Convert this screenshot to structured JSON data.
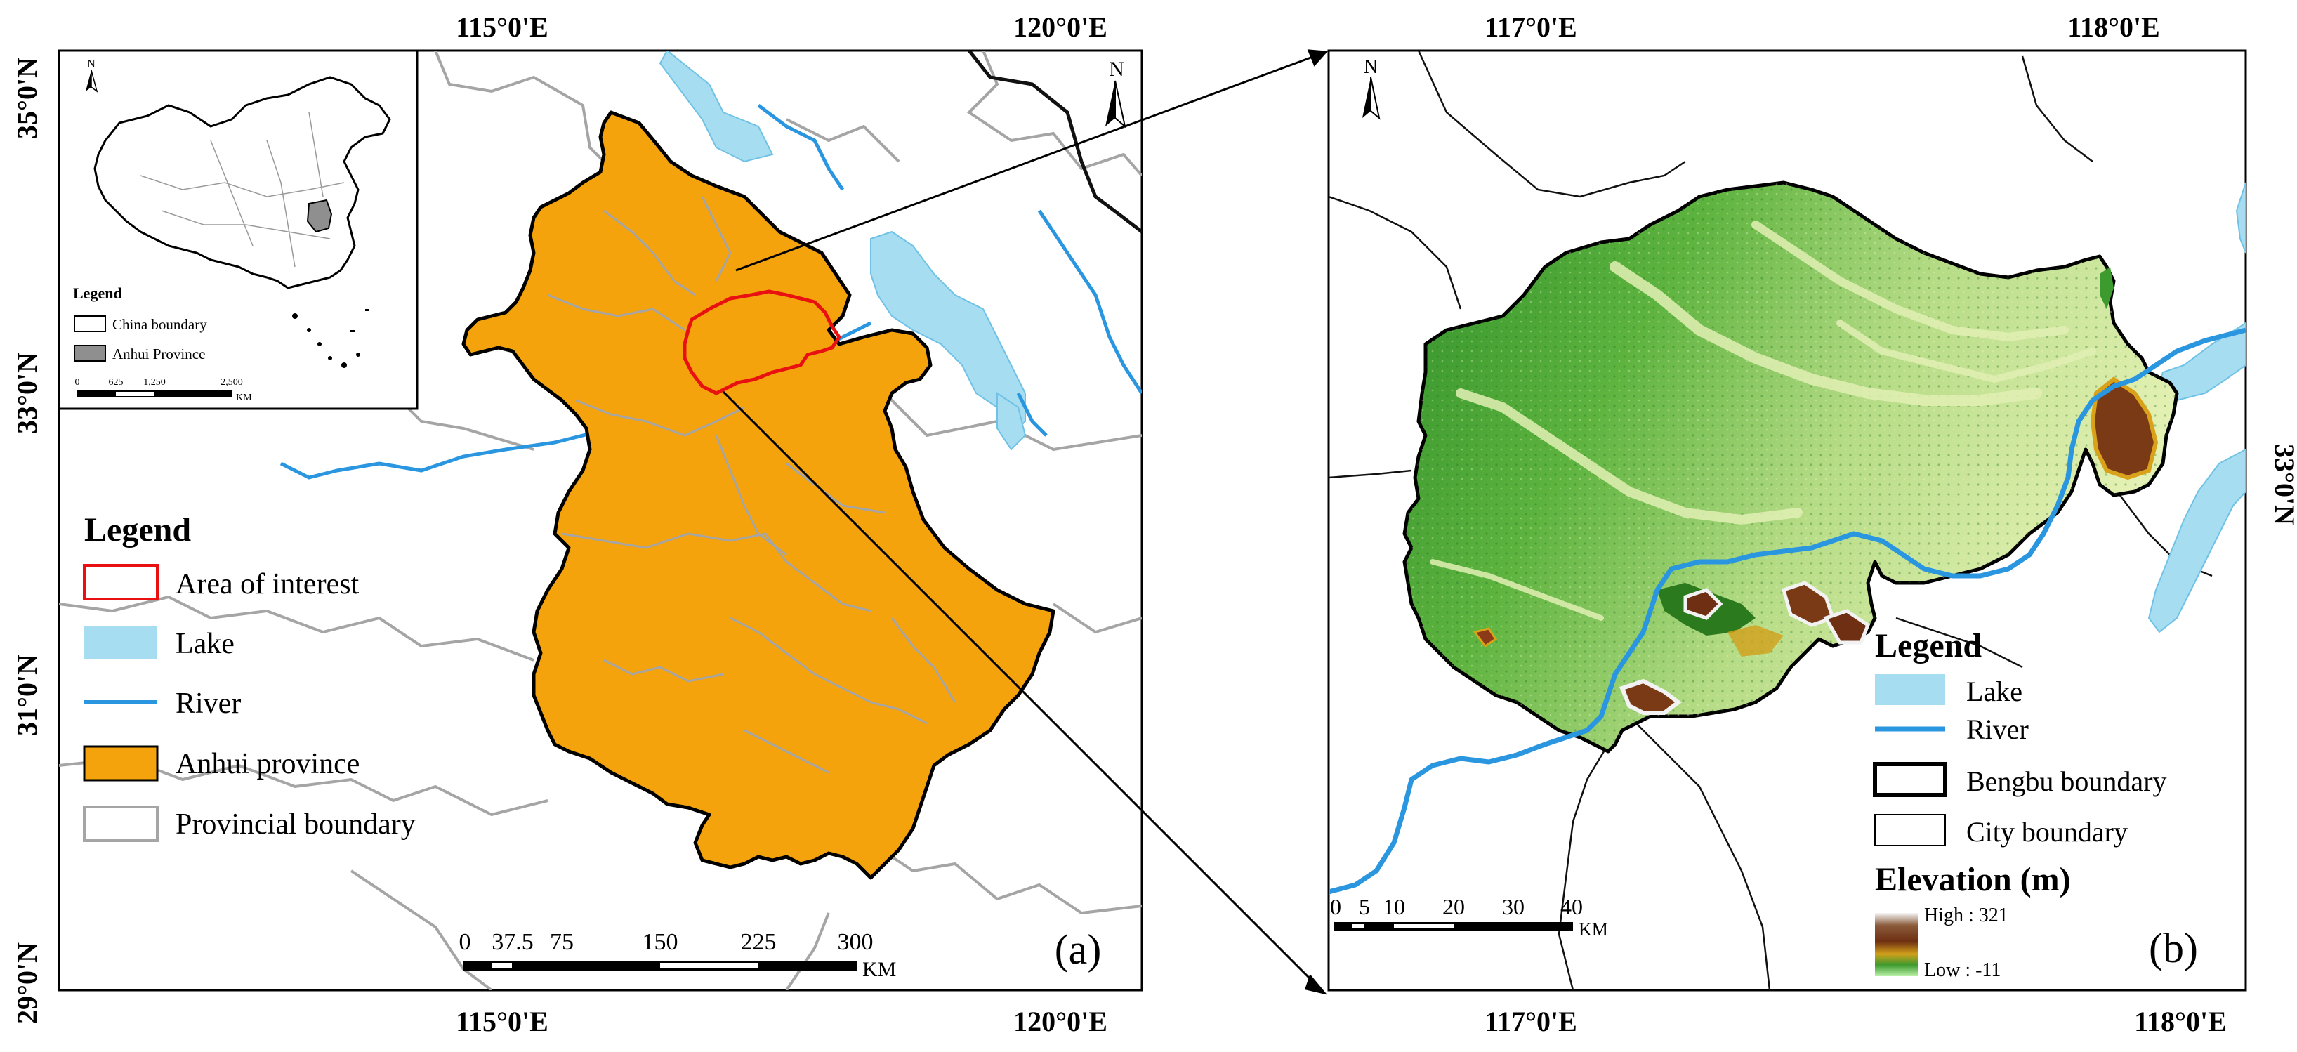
{
  "panel_a": {
    "label": "(a)",
    "lon_ticks": [
      "115°0'E",
      "120°0'E"
    ],
    "lat_ticks": [
      "35°0'N",
      "33°0'N",
      "31°0'N",
      "29°0'N"
    ],
    "north": "N",
    "legend": {
      "title": "Legend",
      "items": [
        {
          "key": "aoi",
          "label": "Area of interest"
        },
        {
          "key": "lake",
          "label": "Lake"
        },
        {
          "key": "river",
          "label": "River"
        },
        {
          "key": "anhui",
          "label": "Anhui province"
        },
        {
          "key": "prov",
          "label": "Provincial boundary"
        }
      ]
    },
    "scale": {
      "ticks": [
        "0",
        "37.5",
        "75",
        "150",
        "225",
        "300"
      ],
      "unit": "KM"
    },
    "inset": {
      "north": "N",
      "legend_title": "Legend",
      "items": [
        {
          "key": "china",
          "label": "China boundary"
        },
        {
          "key": "anhui",
          "label": "Anhui Province"
        }
      ],
      "scale": {
        "ticks": [
          "0",
          "625",
          "1,250",
          "2,500"
        ],
        "unit": "KM"
      }
    }
  },
  "panel_b": {
    "label": "(b)",
    "lon_ticks": [
      "117°0'E",
      "118°0'E"
    ],
    "lat_ticks": [
      "33°0'N"
    ],
    "north": "N",
    "legend": {
      "title": "Legend",
      "items": [
        {
          "key": "lake",
          "label": "Lake"
        },
        {
          "key": "river",
          "label": "River"
        },
        {
          "key": "bengbu",
          "label": "Bengbu boundary"
        },
        {
          "key": "city",
          "label": "City boundary"
        }
      ]
    },
    "elevation": {
      "title": "Elevation (m)",
      "high": "High : 321",
      "low": "Low : -11"
    },
    "scale": {
      "ticks": [
        "0",
        "5",
        "10",
        "20",
        "30",
        "40"
      ],
      "unit": "KM"
    }
  },
  "colors": {
    "anhui": "#f5a30c",
    "lake": "#a6ddf0",
    "river": "#2a96e0",
    "aoi": "#e81010",
    "province_boundary": "#a5a5a5",
    "inset_anhui": "#8f8f8f"
  }
}
